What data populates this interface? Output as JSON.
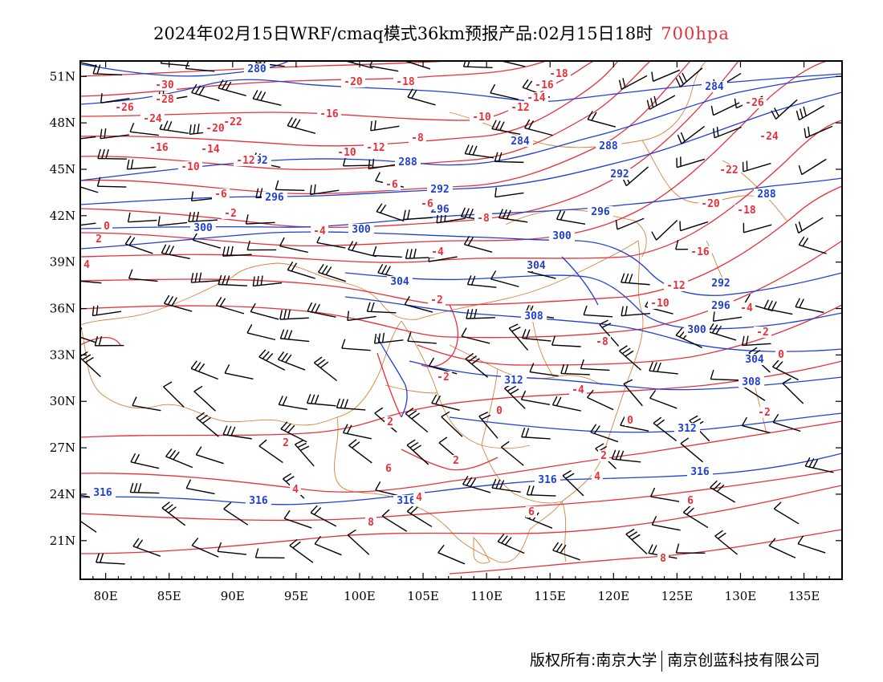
{
  "title": {
    "main": "2024年02月15日WRF/cmaq模式36km预报产品:02月15日18时",
    "level": "700hpa"
  },
  "axes": {
    "x_ticks": [
      "80E",
      "85E",
      "90E",
      "95E",
      "100E",
      "105E",
      "110E",
      "115E",
      "120E",
      "125E",
      "130E",
      "135E"
    ],
    "y_ticks": [
      "51N",
      "48N",
      "45N",
      "42N",
      "39N",
      "36N",
      "33N",
      "30N",
      "27N",
      "24N",
      "21N"
    ],
    "lon_range": [
      78,
      138
    ],
    "lat_range": [
      18.5,
      52
    ]
  },
  "colors": {
    "temperature_contour": "#e8303a",
    "height_contour": "#1f3fd6",
    "boundary": "#d9823a",
    "wind_barb": "#000000"
  },
  "height_labels": [
    "280",
    "284",
    "288",
    "292",
    "296",
    "300",
    "304",
    "308",
    "312",
    "316"
  ],
  "temperature_labels": [
    "-30",
    "-28",
    "-26",
    "-24",
    "-22",
    "-20",
    "-18",
    "-16",
    "-14",
    "-12",
    "-10",
    "-8",
    "-6",
    "-4",
    "-2",
    "0",
    "2",
    "4",
    "6",
    "8"
  ],
  "footer": {
    "left": "版权所有:南京大学",
    "right": "南京创蓝科技有限公司"
  }
}
